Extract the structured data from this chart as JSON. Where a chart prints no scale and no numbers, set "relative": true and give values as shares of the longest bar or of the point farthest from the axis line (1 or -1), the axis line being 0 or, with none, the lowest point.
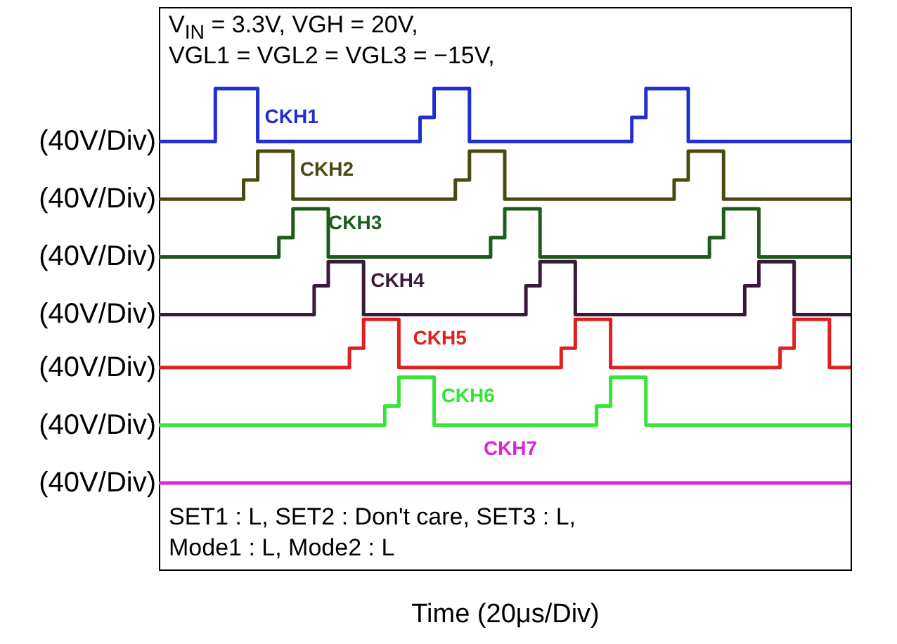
{
  "chart_data": {
    "type": "step",
    "relative": true,
    "xlabel": "Time (20μs/Div)",
    "legend": false,
    "categories": [
      null,
      null,
      null,
      null,
      null,
      null,
      null,
      null,
      null,
      null,
      null,
      null,
      null,
      null,
      null,
      null,
      null,
      null,
      null,
      null,
      null,
      null,
      null,
      null,
      null,
      null,
      null,
      null,
      null,
      null,
      null,
      null,
      null,
      null,
      null,
      null,
      null,
      null,
      null,
      null,
      null,
      null,
      null,
      null,
      null,
      null,
      null,
      null,
      null,
      null,
      null,
      null,
      null,
      null,
      null,
      null,
      null,
      null,
      null,
      null,
      null,
      null,
      null,
      null,
      null,
      null,
      null,
      null,
      null,
      null,
      null,
      null,
      null,
      null,
      null,
      null,
      null,
      null,
      null,
      null,
      null,
      null,
      null,
      null,
      null,
      null,
      null,
      null,
      null,
      null,
      null,
      null,
      null,
      null,
      null,
      null,
      null,
      null,
      null
    ],
    "series": [
      {
        "name": "CKH1",
        "color": "#1f2fd0",
        "values": [
          0.89,
          0.89,
          0.89,
          0.89,
          0.89,
          0.89,
          0.89,
          0.89,
          1,
          1,
          1,
          1,
          1,
          1,
          0.89,
          0.89,
          0.89,
          0.89,
          0.89,
          0.89,
          0.89,
          0.89,
          0.89,
          0.89,
          0.89,
          0.89,
          0.89,
          0.89,
          0.89,
          0.89,
          0.89,
          0.89,
          0.89,
          0.89,
          0.89,
          0.89,
          0.89,
          0.94,
          0.94,
          1,
          1,
          1,
          1,
          1,
          0.89,
          0.89,
          0.89,
          0.89,
          0.89,
          0.89,
          0.89,
          0.89,
          0.89,
          0.89,
          0.89,
          0.89,
          0.89,
          0.89,
          0.89,
          0.89,
          0.89,
          0.89,
          0.89,
          0.89,
          0.89,
          0.89,
          0.89,
          0.94,
          0.94,
          1,
          1,
          1,
          1,
          1,
          1,
          0.89,
          0.89,
          0.89,
          0.89,
          0.89,
          0.89,
          0.89,
          0.89,
          0.89,
          0.89,
          0.89,
          0.89,
          0.89,
          0.89,
          0.89,
          0.89,
          0.89,
          0.89,
          0.89,
          0.89,
          0.89,
          0.89,
          0.89,
          0.89
        ]
      },
      {
        "name": "CKH2",
        "color": "#4a4a10",
        "values": [
          0.77,
          0.77,
          0.77,
          0.77,
          0.77,
          0.77,
          0.77,
          0.77,
          0.77,
          0.77,
          0.77,
          0.77,
          0.81,
          0.81,
          0.87,
          0.87,
          0.87,
          0.87,
          0.87,
          0.77,
          0.77,
          0.77,
          0.77,
          0.77,
          0.77,
          0.77,
          0.77,
          0.77,
          0.77,
          0.77,
          0.77,
          0.77,
          0.77,
          0.77,
          0.77,
          0.77,
          0.77,
          0.77,
          0.77,
          0.77,
          0.77,
          0.77,
          0.81,
          0.81,
          0.87,
          0.87,
          0.87,
          0.87,
          0.87,
          0.77,
          0.77,
          0.77,
          0.77,
          0.77,
          0.77,
          0.77,
          0.77,
          0.77,
          0.77,
          0.77,
          0.77,
          0.77,
          0.77,
          0.77,
          0.77,
          0.77,
          0.77,
          0.77,
          0.77,
          0.77,
          0.77,
          0.77,
          0.77,
          0.81,
          0.81,
          0.87,
          0.87,
          0.87,
          0.87,
          0.87,
          0.77,
          0.77,
          0.77,
          0.77,
          0.77,
          0.77,
          0.77,
          0.77,
          0.77,
          0.77,
          0.77,
          0.77,
          0.77,
          0.77,
          0.77,
          0.77,
          0.77,
          0.77,
          0.77
        ]
      },
      {
        "name": "CKH3",
        "color": "#1e5a1e",
        "values": [
          0.65,
          0.65,
          0.65,
          0.65,
          0.65,
          0.65,
          0.65,
          0.65,
          0.65,
          0.65,
          0.65,
          0.65,
          0.65,
          0.65,
          0.65,
          0.65,
          0.65,
          0.69,
          0.69,
          0.75,
          0.75,
          0.75,
          0.75,
          0.75,
          0.65,
          0.65,
          0.65,
          0.65,
          0.65,
          0.65,
          0.65,
          0.65,
          0.65,
          0.65,
          0.65,
          0.65,
          0.65,
          0.65,
          0.65,
          0.65,
          0.65,
          0.65,
          0.65,
          0.65,
          0.65,
          0.65,
          0.65,
          0.69,
          0.69,
          0.75,
          0.75,
          0.75,
          0.75,
          0.75,
          0.65,
          0.65,
          0.65,
          0.65,
          0.65,
          0.65,
          0.65,
          0.65,
          0.65,
          0.65,
          0.65,
          0.65,
          0.65,
          0.65,
          0.65,
          0.65,
          0.65,
          0.65,
          0.65,
          0.65,
          0.65,
          0.65,
          0.65,
          0.65,
          0.69,
          0.69,
          0.75,
          0.75,
          0.75,
          0.75,
          0.75,
          0.65,
          0.65,
          0.65,
          0.65,
          0.65,
          0.65,
          0.65,
          0.65,
          0.65,
          0.65,
          0.65,
          0.65,
          0.65,
          0.65
        ]
      },
      {
        "name": "CKH4",
        "color": "#3a1a3a",
        "values": [
          0.53,
          0.53,
          0.53,
          0.53,
          0.53,
          0.53,
          0.53,
          0.53,
          0.53,
          0.53,
          0.53,
          0.53,
          0.53,
          0.53,
          0.53,
          0.53,
          0.53,
          0.53,
          0.53,
          0.53,
          0.53,
          0.53,
          0.59,
          0.59,
          0.64,
          0.64,
          0.64,
          0.64,
          0.64,
          0.53,
          0.53,
          0.53,
          0.53,
          0.53,
          0.53,
          0.53,
          0.53,
          0.53,
          0.53,
          0.53,
          0.53,
          0.53,
          0.53,
          0.53,
          0.53,
          0.53,
          0.53,
          0.53,
          0.53,
          0.53,
          0.53,
          0.53,
          0.59,
          0.59,
          0.64,
          0.64,
          0.64,
          0.64,
          0.64,
          0.53,
          0.53,
          0.53,
          0.53,
          0.53,
          0.53,
          0.53,
          0.53,
          0.53,
          0.53,
          0.53,
          0.53,
          0.53,
          0.53,
          0.53,
          0.53,
          0.53,
          0.53,
          0.53,
          0.53,
          0.53,
          0.53,
          0.53,
          0.53,
          0.59,
          0.59,
          0.64,
          0.64,
          0.64,
          0.64,
          0.64,
          0.53,
          0.53,
          0.53,
          0.53,
          0.53,
          0.53,
          0.53,
          0.53,
          0.53
        ]
      },
      {
        "name": "CKH5",
        "color": "#e02020",
        "values": [
          0.42,
          0.42,
          0.42,
          0.42,
          0.42,
          0.42,
          0.42,
          0.42,
          0.42,
          0.42,
          0.42,
          0.42,
          0.42,
          0.42,
          0.42,
          0.42,
          0.42,
          0.42,
          0.42,
          0.42,
          0.42,
          0.42,
          0.42,
          0.42,
          0.42,
          0.42,
          0.42,
          0.46,
          0.46,
          0.52,
          0.52,
          0.52,
          0.52,
          0.52,
          0.42,
          0.42,
          0.42,
          0.42,
          0.42,
          0.42,
          0.42,
          0.42,
          0.42,
          0.42,
          0.42,
          0.42,
          0.42,
          0.42,
          0.42,
          0.42,
          0.42,
          0.42,
          0.42,
          0.42,
          0.42,
          0.42,
          0.42,
          0.46,
          0.46,
          0.52,
          0.52,
          0.52,
          0.52,
          0.52,
          0.42,
          0.42,
          0.42,
          0.42,
          0.42,
          0.42,
          0.42,
          0.42,
          0.42,
          0.42,
          0.42,
          0.42,
          0.42,
          0.42,
          0.42,
          0.42,
          0.42,
          0.42,
          0.42,
          0.42,
          0.42,
          0.42,
          0.42,
          0.42,
          0.46,
          0.46,
          0.52,
          0.52,
          0.52,
          0.52,
          0.52,
          0.42,
          0.42,
          0.42,
          0.42
        ]
      },
      {
        "name": "CKH6",
        "color": "#33e633",
        "values": [
          0.3,
          0.3,
          0.3,
          0.3,
          0.3,
          0.3,
          0.3,
          0.3,
          0.3,
          0.3,
          0.3,
          0.3,
          0.3,
          0.3,
          0.3,
          0.3,
          0.3,
          0.3,
          0.3,
          0.3,
          0.3,
          0.3,
          0.3,
          0.3,
          0.3,
          0.3,
          0.3,
          0.3,
          0.3,
          0.3,
          0.3,
          0.3,
          0.34,
          0.34,
          0.4,
          0.4,
          0.4,
          0.4,
          0.4,
          0.3,
          0.3,
          0.3,
          0.3,
          0.3,
          0.3,
          0.3,
          0.3,
          0.3,
          0.3,
          0.3,
          0.3,
          0.3,
          0.3,
          0.3,
          0.3,
          0.3,
          0.3,
          0.3,
          0.3,
          0.3,
          0.3,
          0.3,
          0.34,
          0.34,
          0.4,
          0.4,
          0.4,
          0.4,
          0.4,
          0.3,
          0.3,
          0.3,
          0.3,
          0.3,
          0.3,
          0.3,
          0.3,
          0.3,
          0.3,
          0.3,
          0.3,
          0.3,
          0.3,
          0.3,
          0.3,
          0.3,
          0.3,
          0.3,
          0.3,
          0.3,
          0.3,
          0.3,
          0.3,
          0.3,
          0.3,
          0.3,
          0.3,
          0.3,
          0.3
        ]
      },
      {
        "name": "CKH7",
        "color": "#e020e0",
        "values": [
          0.18,
          0.18,
          0.18,
          0.18,
          0.18,
          0.18,
          0.18,
          0.18,
          0.18,
          0.18,
          0.18,
          0.18,
          0.18,
          0.18,
          0.18,
          0.18,
          0.18,
          0.18,
          0.18,
          0.18,
          0.18,
          0.18,
          0.18,
          0.18,
          0.18,
          0.18,
          0.18,
          0.18,
          0.18,
          0.18,
          0.18,
          0.18,
          0.18,
          0.18,
          0.18,
          0.18,
          0.18,
          0.18,
          0.18,
          0.18,
          0.18,
          0.18,
          0.18,
          0.18,
          0.18,
          0.18,
          0.18,
          0.18,
          0.18,
          0.18,
          0.18,
          0.18,
          0.18,
          0.18,
          0.18,
          0.18,
          0.18,
          0.18,
          0.18,
          0.18,
          0.18,
          0.18,
          0.18,
          0.18,
          0.18,
          0.18,
          0.18,
          0.18,
          0.18,
          0.18,
          0.18,
          0.18,
          0.18,
          0.18,
          0.18,
          0.18,
          0.18,
          0.18,
          0.18,
          0.18,
          0.18,
          0.18,
          0.18,
          0.18,
          0.18,
          0.18,
          0.18,
          0.18,
          0.18,
          0.18,
          0.18,
          0.18,
          0.18,
          0.18,
          0.18,
          0.18,
          0.18,
          0.18,
          0.18
        ]
      }
    ],
    "annotations": [
      "V$_{IN}$ = 3.3V, VGH = 20V,",
      "VGL1 = VGL2 = VGL3 = −15V,",
      "SET1 : L, SET2 : Don't care, SET3 : L,",
      "Mode1 : L, Mode2 : L",
      "(40V/Div)",
      "(40V/Div)",
      "(40V/Div)",
      "(40V/Div)",
      "(40V/Div)",
      "(40V/Div)",
      "(40V/Div)"
    ]
  }
}
